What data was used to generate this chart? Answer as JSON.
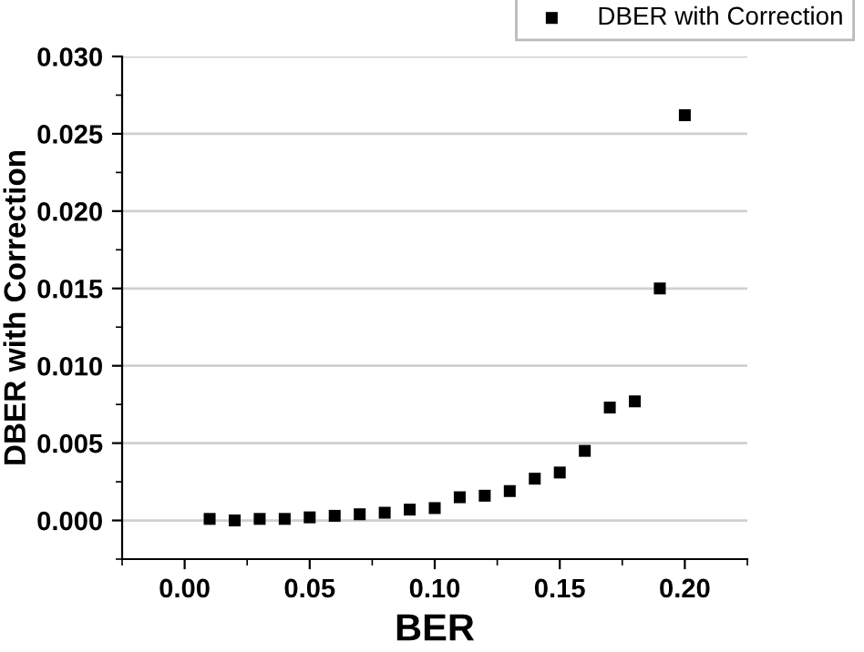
{
  "chart_data": {
    "type": "scatter",
    "xlabel": "BER",
    "ylabel": "DBER with Correction",
    "x": [
      0.01,
      0.02,
      0.03,
      0.04,
      0.05,
      0.06,
      0.07,
      0.08,
      0.09,
      0.1,
      0.11,
      0.12,
      0.13,
      0.14,
      0.15,
      0.16,
      0.17,
      0.18,
      0.19,
      0.2
    ],
    "series": [
      {
        "name": "DBER with Correction",
        "color": "#000000",
        "values": [
          0.0001,
          0.0,
          0.0001,
          0.0001,
          0.0002,
          0.0003,
          0.0004,
          0.0005,
          0.0007,
          0.0008,
          0.0015,
          0.0016,
          0.0019,
          0.0027,
          0.0031,
          0.0045,
          0.0073,
          0.0077,
          0.015,
          0.0262
        ]
      }
    ],
    "xlim": [
      -0.025,
      0.225
    ],
    "ylim": [
      -0.0025,
      0.03
    ],
    "xticks": [
      {
        "value": 0,
        "label": "0.00"
      },
      0.05,
      {
        "value": 0.1,
        "label": "0.10"
      },
      0.15,
      {
        "value": 0.2,
        "label": "0.20"
      }
    ],
    "yticks": [
      {
        "value": 0,
        "label": "0.000"
      },
      0.005,
      {
        "value": 0.01,
        "label": "0.010"
      },
      0.015,
      {
        "value": 0.02,
        "label": "0.020"
      },
      0.025,
      {
        "value": 0.03,
        "label": "0.030"
      }
    ],
    "grid": "y",
    "legend": "top right",
    "marker": "square"
  }
}
